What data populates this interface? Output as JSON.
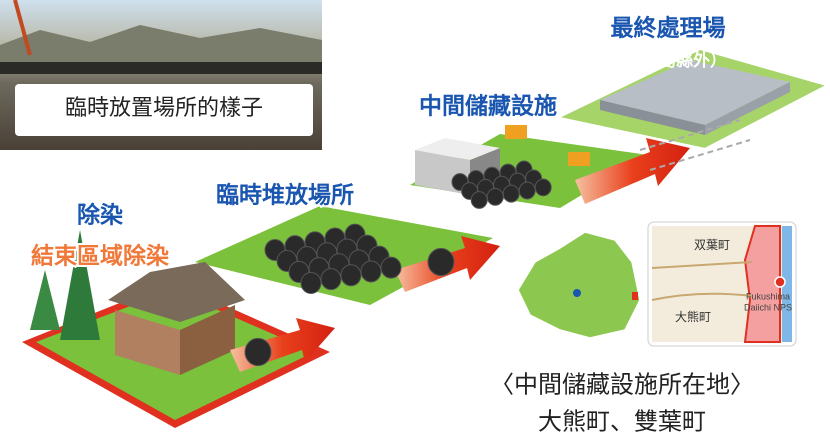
{
  "photo": {
    "caption": "臨時放置場所的樣子"
  },
  "stages": [
    {
      "label": "除染",
      "sublabel": "結束區域除染"
    },
    {
      "label": "臨時堆放場所"
    },
    {
      "label": "中間儲藏設施"
    },
    {
      "label": "最終處理場",
      "sublabel": "（福島縣外）"
    }
  ],
  "map": {
    "labels": [
      "双葉町",
      "大熊町",
      "Fukushima",
      "Daiichi NPS"
    ]
  },
  "location": {
    "title": "〈中間儲藏設施所在地〉",
    "towns": "大熊町、雙葉町"
  }
}
